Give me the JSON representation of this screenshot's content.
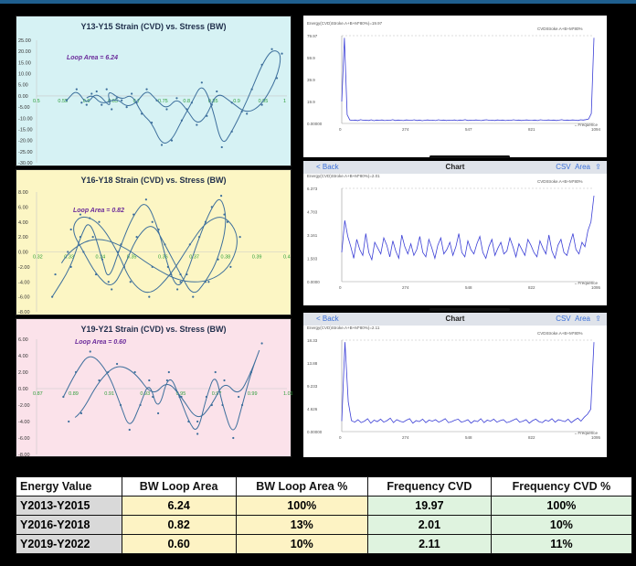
{
  "colors": {
    "panel1_bg": "#d6f2f4",
    "panel2_bg": "#fcf6c4",
    "panel3_bg": "#fbe2ea",
    "loop_line": "#3d6f9c",
    "freq_line": "#3b3fd6"
  },
  "chart_data": [
    {
      "type": "line",
      "title": "Y13-Y15 Strain (CVD) vs. Stress (BW)",
      "annotation": "Loop Area = 6.24",
      "y_ticks": [
        "25.00",
        "20.00",
        "15.00",
        "10.00",
        "5.00",
        "0.00",
        "-5.00",
        "-10.00",
        "-15.00",
        "-20.00",
        "-25.00",
        "-30.00"
      ],
      "x_ticks": [
        "0.5",
        "0.55",
        "0.6",
        "0.65",
        "0.7",
        "0.75",
        "0.8",
        "0.85",
        "0.9",
        "0.95",
        "1"
      ],
      "xlim": [
        0.5,
        1.0
      ],
      "ylim": [
        -30,
        25
      ],
      "points": [
        [
          0.56,
          -2
        ],
        [
          0.58,
          3
        ],
        [
          0.6,
          -4
        ],
        [
          0.62,
          2
        ],
        [
          0.65,
          -6
        ],
        [
          0.64,
          3
        ],
        [
          0.67,
          -2
        ],
        [
          0.69,
          1
        ],
        [
          0.71,
          -8
        ],
        [
          0.73,
          -12
        ],
        [
          0.75,
          -22
        ],
        [
          0.77,
          -20
        ],
        [
          0.79,
          -11
        ],
        [
          0.81,
          -3
        ],
        [
          0.83,
          6
        ],
        [
          0.85,
          -4
        ],
        [
          0.87,
          -23
        ],
        [
          0.89,
          -16
        ],
        [
          0.91,
          -7
        ],
        [
          0.93,
          3
        ],
        [
          0.95,
          14
        ],
        [
          0.97,
          21
        ],
        [
          0.99,
          19
        ],
        [
          0.98,
          8
        ],
        [
          0.95,
          -4
        ],
        [
          0.92,
          -8
        ],
        [
          0.89,
          -3
        ],
        [
          0.86,
          2
        ],
        [
          0.84,
          -9
        ],
        [
          0.82,
          -13
        ],
        [
          0.8,
          -6
        ],
        [
          0.78,
          -1
        ],
        [
          0.76,
          -6
        ],
        [
          0.74,
          -2
        ],
        [
          0.72,
          3
        ],
        [
          0.7,
          -3
        ],
        [
          0.68,
          -5
        ],
        [
          0.66,
          -1
        ],
        [
          0.63,
          -4
        ],
        [
          0.61,
          1
        ],
        [
          0.59,
          -3
        ]
      ]
    },
    {
      "type": "line",
      "title": "Y16-Y18 Strain (CVD) vs. Stress (BW)",
      "annotation": "Loop Area = 0.82",
      "y_ticks": [
        "8.00",
        "6.00",
        "4.00",
        "2.00",
        "0.00",
        "-2.00",
        "-4.00",
        "-6.00",
        "-8.00"
      ],
      "x_ticks": [
        "0.32",
        "0.33",
        "0.34",
        "0.35",
        "0.36",
        "0.37",
        "0.38",
        "0.39",
        "0.4"
      ],
      "xlim": [
        0.32,
        0.4
      ],
      "ylim": [
        -8,
        8
      ],
      "points": [
        [
          0.325,
          -6
        ],
        [
          0.331,
          -2
        ],
        [
          0.334,
          2
        ],
        [
          0.337,
          4.5
        ],
        [
          0.341,
          -1
        ],
        [
          0.343,
          -4
        ],
        [
          0.347,
          1
        ],
        [
          0.351,
          5
        ],
        [
          0.355,
          7
        ],
        [
          0.359,
          3
        ],
        [
          0.362,
          -2
        ],
        [
          0.365,
          -5
        ],
        [
          0.368,
          -3
        ],
        [
          0.372,
          2
        ],
        [
          0.376,
          6
        ],
        [
          0.379,
          7.5
        ],
        [
          0.381,
          4
        ],
        [
          0.378,
          -1
        ],
        [
          0.374,
          -4
        ],
        [
          0.37,
          -6
        ],
        [
          0.366,
          -3
        ],
        [
          0.361,
          1
        ],
        [
          0.357,
          4
        ],
        [
          0.352,
          2
        ],
        [
          0.348,
          -2
        ],
        [
          0.344,
          -5
        ],
        [
          0.339,
          -3
        ],
        [
          0.335,
          0
        ],
        [
          0.331,
          3
        ],
        [
          0.334,
          5
        ],
        [
          0.34,
          4
        ],
        [
          0.346,
          0
        ],
        [
          0.35,
          -4
        ],
        [
          0.356,
          -6
        ],
        [
          0.363,
          -3
        ],
        [
          0.369,
          1
        ],
        [
          0.374,
          4
        ],
        [
          0.38,
          5
        ],
        [
          0.385,
          2
        ],
        [
          0.382,
          -2
        ],
        [
          0.375,
          -4
        ],
        [
          0.366,
          -4
        ],
        [
          0.357,
          -2
        ],
        [
          0.347,
          1
        ],
        [
          0.338,
          2
        ],
        [
          0.33,
          0
        ],
        [
          0.326,
          -3
        ]
      ]
    },
    {
      "type": "line",
      "title": "Y19-Y21 Strain (CVD) vs. Stress (BW)",
      "annotation": "Loop Area = 0.60",
      "y_ticks": [
        "6.00",
        "4.00",
        "2.00",
        "0.00",
        "-2.00",
        "-4.00",
        "-6.00",
        "-8.00"
      ],
      "x_ticks": [
        "0.87",
        "0.89",
        "0.91",
        "0.93",
        "0.95",
        "0.97",
        "0.99",
        "1.01"
      ],
      "xlim": [
        0.87,
        1.01
      ],
      "ylim": [
        -8,
        6
      ],
      "points": [
        [
          0.885,
          -1
        ],
        [
          0.892,
          2
        ],
        [
          0.9,
          4.5
        ],
        [
          0.91,
          2
        ],
        [
          0.917,
          -2
        ],
        [
          0.922,
          -5
        ],
        [
          0.928,
          -2
        ],
        [
          0.933,
          1
        ],
        [
          0.938,
          -3
        ],
        [
          0.944,
          2
        ],
        [
          0.95,
          -1
        ],
        [
          0.955,
          -4
        ],
        [
          0.96,
          -5.5
        ],
        [
          0.965,
          -1
        ],
        [
          0.97,
          2
        ],
        [
          0.974,
          -2
        ],
        [
          0.98,
          -6
        ],
        [
          0.985,
          -2
        ],
        [
          0.99,
          2
        ],
        [
          0.996,
          5.5
        ],
        [
          0.99,
          2
        ],
        [
          0.983,
          -1
        ],
        [
          0.975,
          1
        ],
        [
          0.968,
          -2
        ],
        [
          0.96,
          -4
        ],
        [
          0.951,
          -1
        ],
        [
          0.943,
          1
        ],
        [
          0.935,
          -1
        ],
        [
          0.925,
          2
        ],
        [
          0.915,
          3
        ],
        [
          0.905,
          1
        ],
        [
          0.895,
          -3
        ],
        [
          0.888,
          -4
        ]
      ]
    },
    {
      "type": "line",
      "series_label": "Energy(CVD)Stroke.A+B+M*80%)=19.97",
      "legend_label": "CVDStroke.A+B+M*80%",
      "y_ticks": [
        "79.97",
        "59.9",
        "39.9",
        "19.9",
        "0.00000"
      ],
      "x_ticks": [
        "0",
        "274",
        "547",
        "821",
        "1094"
      ],
      "x_axis_label": "Frequence",
      "ylim": [
        0,
        80
      ],
      "xlim": [
        0,
        1094
      ],
      "values": [
        19.97,
        78,
        8,
        3.2,
        2.8,
        3.1,
        2.6,
        3.4,
        2.9,
        3.0,
        2.7,
        3.3,
        2.5,
        3.1,
        2.9,
        3.2,
        2.6,
        3.0,
        2.8,
        3.4,
        2.7,
        3.1,
        2.9,
        2.6,
        3.2,
        3.0,
        2.8,
        3.3,
        2.7,
        3.1,
        2.5,
        2.9,
        3.2,
        2.8,
        3.0,
        2.6,
        3.3,
        2.9,
        3.1,
        2.7,
        3.0,
        2.8,
        3.2,
        2.6,
        3.1,
        2.9,
        3.4,
        2.7,
        3.0,
        2.8,
        3.2,
        2.9,
        2.6,
        3.1,
        3.3,
        2.8,
        3.0,
        2.7,
        3.2,
        2.9,
        3.1,
        2.6,
        3.0,
        2.8,
        3.3,
        2.9,
        3.1,
        2.7,
        3.0,
        3.2,
        2.8,
        2.9,
        3.1,
        2.6,
        3.3,
        3.0,
        2.8,
        3.2,
        2.9,
        3.1,
        2.7,
        3.0,
        3.4,
        2.8,
        3.1,
        2.9,
        3.2,
        3.0,
        2.7,
        3.3,
        3.1,
        3.5,
        4,
        9,
        78
      ]
    },
    {
      "type": "line",
      "bar_labels": {
        "back": "< Back",
        "title": "Chart",
        "csv": "CSV",
        "area": "Area"
      },
      "series_label": "Energy(CVD)Stroke.A+B+M*80%)=2.01",
      "legend_label": "CVDStroke.A+B+M*80%",
      "y_ticks": [
        "6.373",
        "4.783",
        "3.161",
        "1.583",
        "0.0000"
      ],
      "x_ticks": [
        "0",
        "274",
        "548",
        "822",
        "1095"
      ],
      "x_axis_label": "Frequence",
      "ylim": [
        0,
        6.4
      ],
      "xlim": [
        0,
        1095
      ],
      "values": [
        2.01,
        4.2,
        3.1,
        2.4,
        1.6,
        2.9,
        2.2,
        1.8,
        3.3,
        2.0,
        1.5,
        2.7,
        2.3,
        1.9,
        3.0,
        2.5,
        1.7,
        2.8,
        2.1,
        1.6,
        3.2,
        2.4,
        1.9,
        2.6,
        1.8,
        2.2,
        3.1,
        2.0,
        1.7,
        2.9,
        2.3,
        1.6,
        2.5,
        3.0,
        1.9,
        2.2,
        2.7,
        1.8,
        2.4,
        3.3,
        2.0,
        1.7,
        2.8,
        2.2,
        1.9,
        2.6,
        3.1,
        2.0,
        1.6,
        2.4,
        2.9,
        1.8,
        2.3,
        2.7,
        1.9,
        2.1,
        3.0,
        2.4,
        1.7,
        2.6,
        2.2,
        1.8,
        2.9,
        2.5,
        2.0,
        1.7,
        2.8,
        2.3,
        1.9,
        3.2,
        2.1,
        1.6,
        2.5,
        2.9,
        2.0,
        1.8,
        2.6,
        3.3,
        2.2,
        1.9,
        2.7,
        2.4,
        3.5,
        4.1,
        5.9
      ]
    },
    {
      "type": "line",
      "bar_labels": {
        "back": "< Back",
        "title": "Chart",
        "csv": "CSV",
        "area": "Area"
      },
      "series_label": "Energy(CVD)Stroke.A+B+M*80%)=2.11",
      "legend_label": "CVDStroke.A+B+M*80%",
      "y_ticks": [
        "18.33",
        "13.88",
        "9.233",
        "4.626",
        "0.00000"
      ],
      "x_ticks": [
        "0",
        "274",
        "548",
        "822",
        "1095"
      ],
      "x_axis_label": "Frequence",
      "ylim": [
        0,
        18.4
      ],
      "xlim": [
        0,
        1095
      ],
      "values": [
        2.11,
        18,
        6,
        2.2,
        1.9,
        2.4,
        1.8,
        2.1,
        2.6,
        1.7,
        2.3,
        2.0,
        2.5,
        1.9,
        2.2,
        2.7,
        1.8,
        2.4,
        2.1,
        1.9,
        2.3,
        2.6,
        1.7,
        2.2,
        2.0,
        2.5,
        1.8,
        2.3,
        2.1,
        2.4,
        1.9,
        2.2,
        2.6,
        1.8,
        2.0,
        2.3,
        2.5,
        1.9,
        2.1,
        2.4,
        1.7,
        2.2,
        2.0,
        2.6,
        1.8,
        2.3,
        2.1,
        2.5,
        1.9,
        2.2,
        2.4,
        1.8,
        2.0,
        2.3,
        2.6,
        1.9,
        2.1,
        2.4,
        1.7,
        2.2,
        2.5,
        2.0,
        1.8,
        2.3,
        2.1,
        2.6,
        1.9,
        2.4,
        2.2,
        2.0,
        2.5,
        1.8,
        2.3,
        2.7,
        2.1,
        2.9,
        3.5,
        4.5,
        18
      ]
    }
  ],
  "table": {
    "headers": [
      "Energy Value",
      "BW Loop Area",
      "BW Loop Area %",
      "Frequency CVD",
      "Frequency CVD %"
    ],
    "rows": [
      [
        "Y2013-Y2015",
        "6.24",
        "100%",
        "19.97",
        "100%"
      ],
      [
        "Y2016-Y2018",
        "0.82",
        "13%",
        "2.01",
        "10%"
      ],
      [
        "Y2019-Y2022",
        "0.60",
        "10%",
        "2.11",
        "11%"
      ]
    ]
  }
}
